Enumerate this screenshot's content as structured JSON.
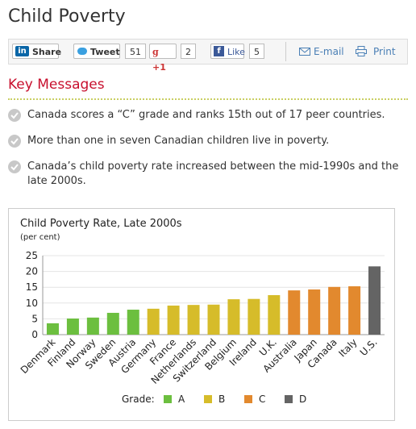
{
  "header": {
    "title": "Child Poverty"
  },
  "share_bar": {
    "linkedin": "Share",
    "twitter": "Tweet",
    "twitter_count": "51",
    "gplus": "+1",
    "gplus_count": "2",
    "facebook": "Like",
    "facebook_count": "5",
    "email": "E-mail",
    "print": "Print"
  },
  "key_messages": {
    "title": "Key Messages",
    "items": [
      "Canada scores a “C” grade and ranks 15th out of 17 peer countries.",
      "More than one in seven Canadian children live in poverty.",
      "Canada’s child poverty rate increased between the mid-1990s and the late 2000s."
    ]
  },
  "chart_data": {
    "type": "bar",
    "title": "Child Poverty Rate, Late 2000s",
    "subtitle": "(per cent)",
    "categories": [
      "Denmark",
      "Finland",
      "Norway",
      "Sweden",
      "Austria",
      "Germany",
      "France",
      "Netherlands",
      "Switzerland",
      "Belgium",
      "Ireland",
      "U.K.",
      "Australia",
      "Japan",
      "Canada",
      "Italy",
      "U.S."
    ],
    "values": [
      3.6,
      5.1,
      5.4,
      6.9,
      7.9,
      8.2,
      9.2,
      9.4,
      9.5,
      11.2,
      11.3,
      12.5,
      14.0,
      14.3,
      15.1,
      15.3,
      21.6
    ],
    "grades": [
      "A",
      "A",
      "A",
      "A",
      "A",
      "B",
      "B",
      "B",
      "B",
      "B",
      "B",
      "B",
      "C",
      "C",
      "C",
      "C",
      "D"
    ],
    "legend": {
      "title": "Grade:",
      "items": [
        {
          "name": "A",
          "color": "#6cbf3f"
        },
        {
          "name": "B",
          "color": "#d6bc2a"
        },
        {
          "name": "C",
          "color": "#e2892e"
        },
        {
          "name": "D",
          "color": "#646464"
        }
      ]
    },
    "ylim": [
      0,
      25
    ],
    "yticks": [
      0,
      5,
      10,
      15,
      20,
      25
    ],
    "grid": true
  }
}
